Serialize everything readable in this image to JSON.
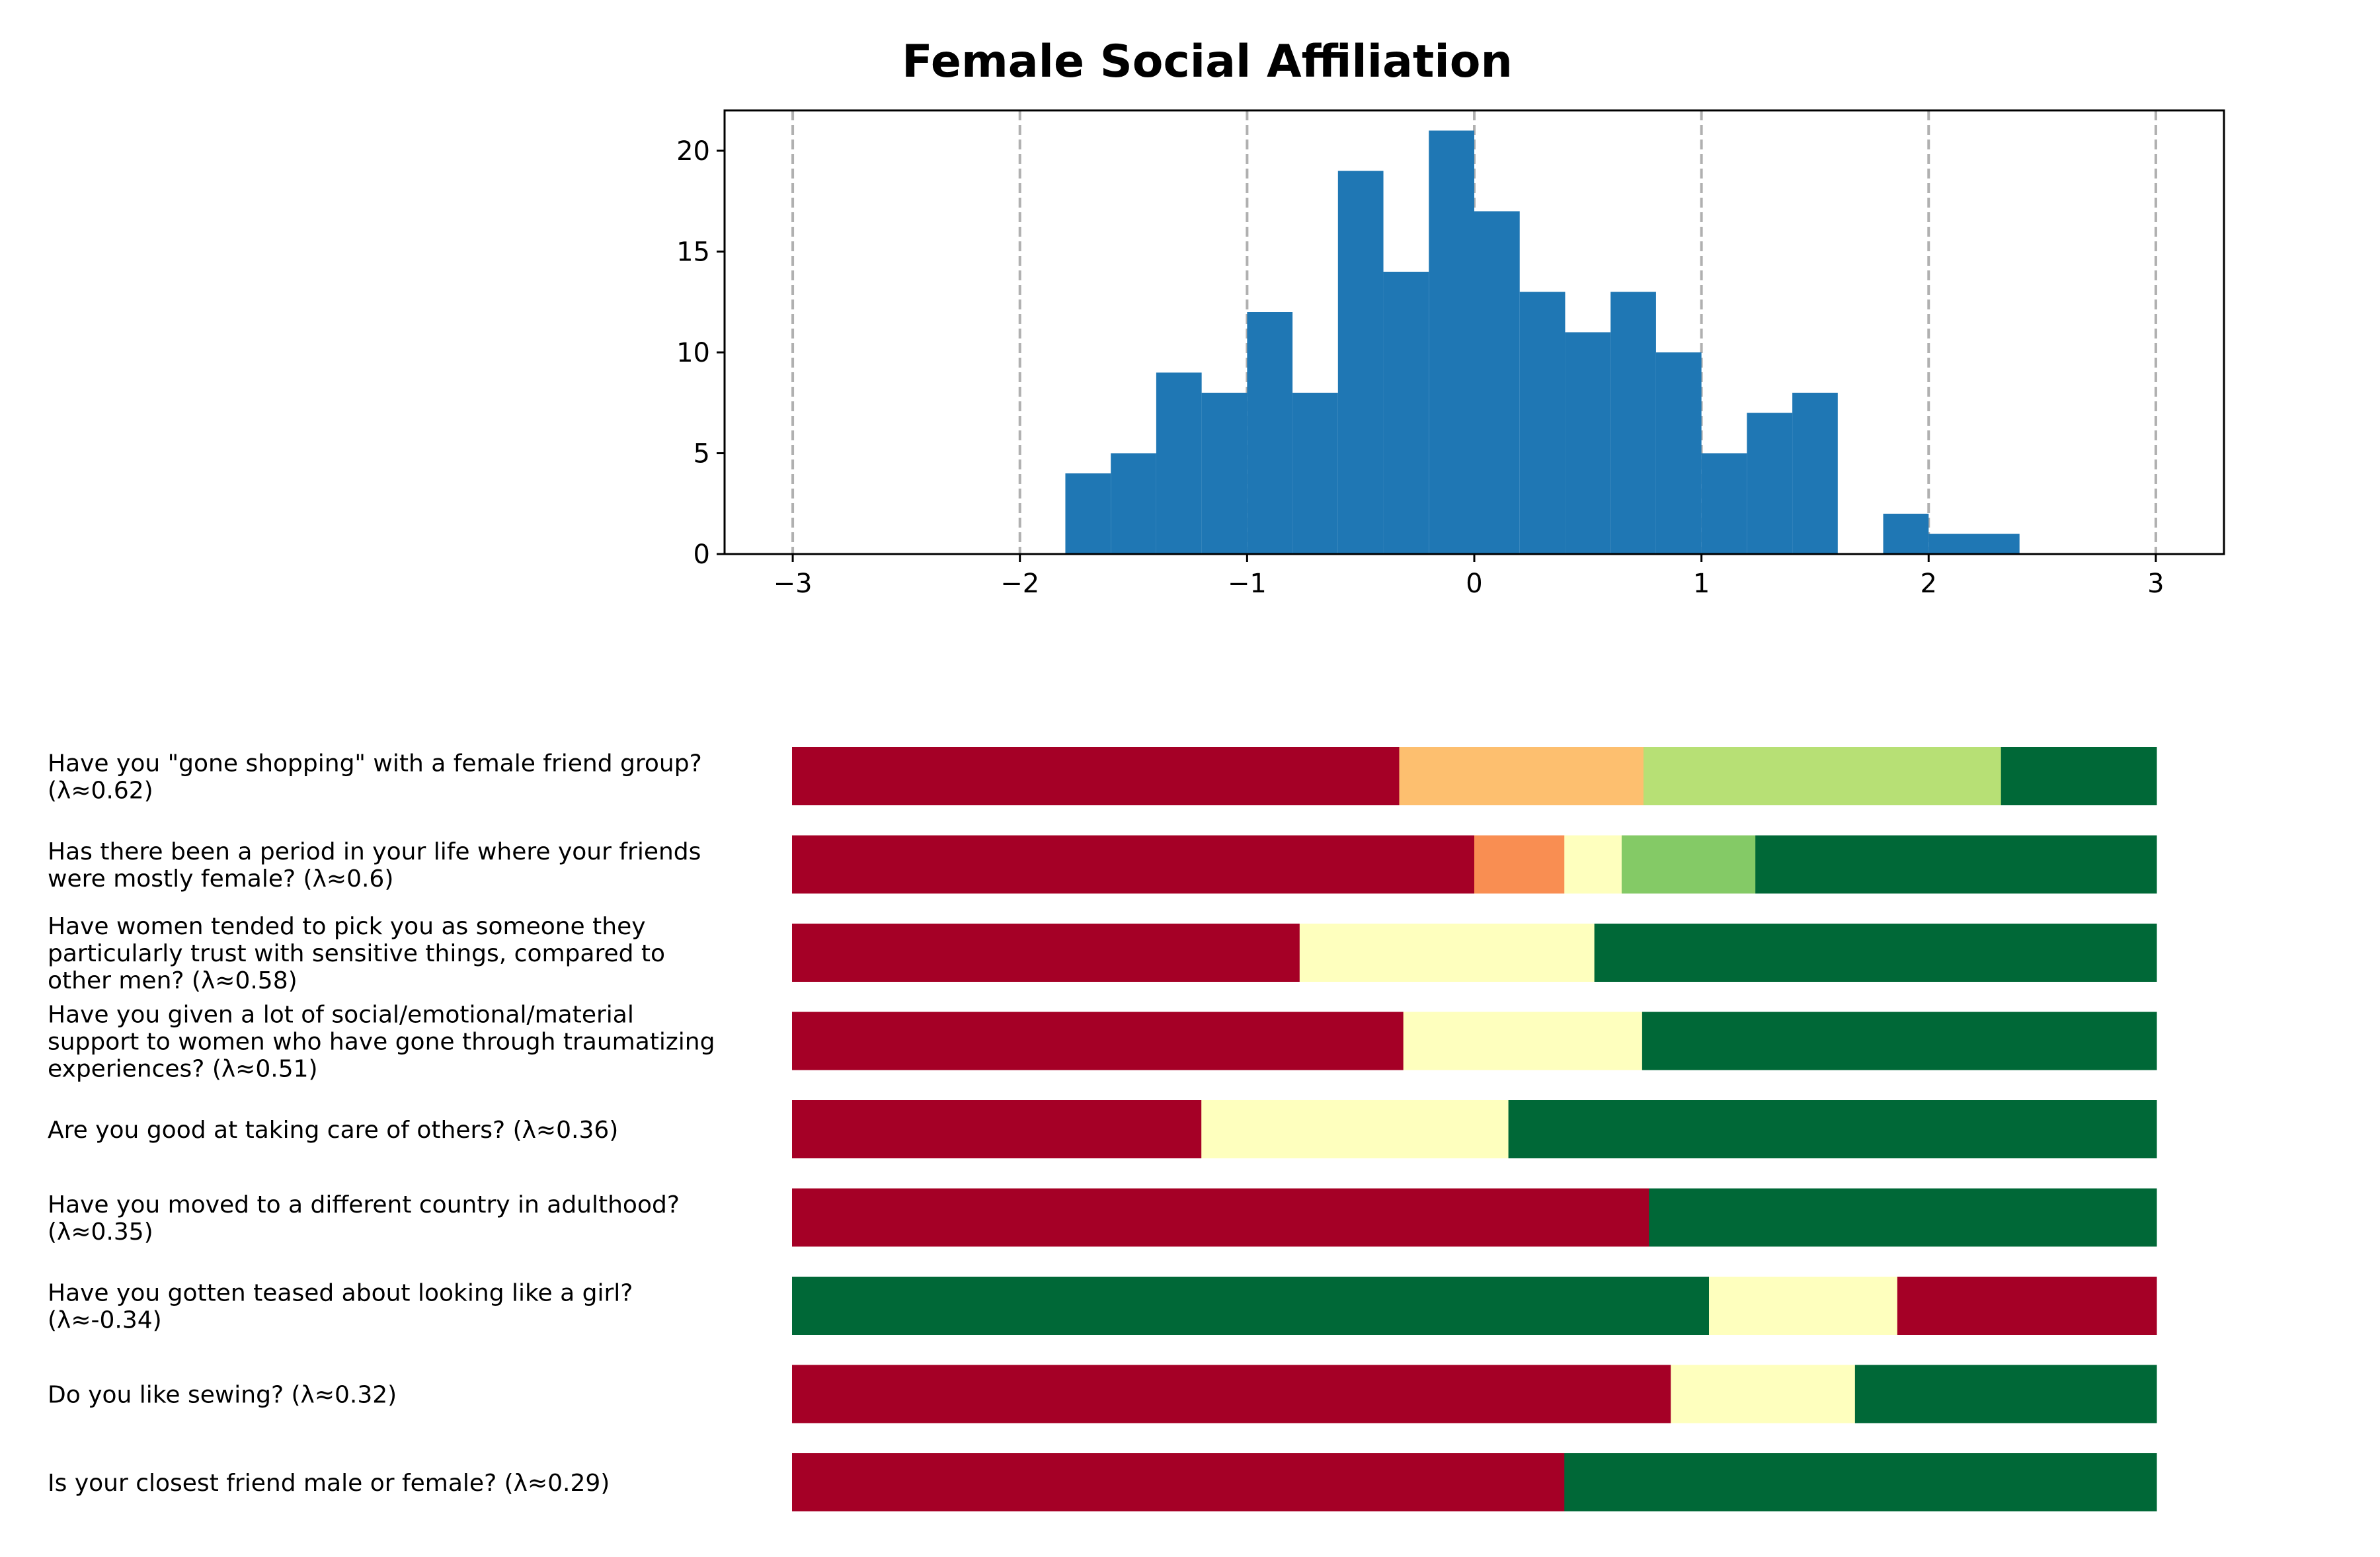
{
  "chart_data": [
    {
      "type": "bar",
      "title": "Female Social Affiliation",
      "xlabel": "",
      "ylabel": "",
      "xlim": [
        -3.3,
        3.3
      ],
      "ylim": [
        0,
        22
      ],
      "xticks": [
        -3,
        -2,
        -1,
        0,
        1,
        2,
        3
      ],
      "xtick_labels": [
        "−3",
        "−2",
        "−1",
        "0",
        "1",
        "2",
        "3"
      ],
      "yticks": [
        0,
        5,
        10,
        15,
        20
      ],
      "ytick_labels": [
        "0",
        "5",
        "10",
        "15",
        "20"
      ],
      "bin_width": 0.2,
      "bins": [
        {
          "x0": -1.8,
          "count": 4
        },
        {
          "x0": -1.6,
          "count": 5
        },
        {
          "x0": -1.4,
          "count": 9
        },
        {
          "x0": -1.2,
          "count": 8
        },
        {
          "x0": -1.0,
          "count": 12
        },
        {
          "x0": -0.8,
          "count": 8
        },
        {
          "x0": -0.6,
          "count": 19
        },
        {
          "x0": -0.4,
          "count": 14
        },
        {
          "x0": -0.2,
          "count": 21
        },
        {
          "x0": 0.0,
          "count": 17
        },
        {
          "x0": 0.2,
          "count": 13
        },
        {
          "x0": 0.4,
          "count": 11
        },
        {
          "x0": 0.6,
          "count": 13
        },
        {
          "x0": 0.8,
          "count": 10
        },
        {
          "x0": 1.0,
          "count": 5
        },
        {
          "x0": 1.2,
          "count": 7
        },
        {
          "x0": 1.4,
          "count": 8
        },
        {
          "x0": 1.6,
          "count": 0
        },
        {
          "x0": 1.8,
          "count": 2
        },
        {
          "x0": 2.0,
          "count": 1
        },
        {
          "x0": 2.2,
          "count": 1
        }
      ],
      "grid_x_lines": [
        -3,
        -2,
        -1,
        0,
        1,
        2,
        3
      ],
      "bar_color": "#1f77b4",
      "grid_color": "#b0b0b0"
    },
    {
      "type": "bar",
      "orientation": "horizontal-stacked",
      "xlim": [
        0,
        1
      ],
      "title": "",
      "rows": [
        {
          "label_lines": [
            "Have you \"gone shopping\" with a female friend group?",
            "(λ≈0.62)"
          ],
          "segments": [
            {
              "value": 0.445,
              "color": "#a50026"
            },
            {
              "value": 0.179,
              "color": "#fdbf6f"
            },
            {
              "value": 0.262,
              "color": "#b7e075"
            },
            {
              "value": 0.114,
              "color": "#006837"
            }
          ]
        },
        {
          "label_lines": [
            "Has there been a period in your life where your friends",
            "were mostly female? (λ≈0.6)"
          ],
          "segments": [
            {
              "value": 0.5,
              "color": "#a50026"
            },
            {
              "value": 0.066,
              "color": "#f98e52"
            },
            {
              "value": 0.042,
              "color": "#feffbe"
            },
            {
              "value": 0.098,
              "color": "#84ca66"
            },
            {
              "value": 0.294,
              "color": "#006837"
            }
          ]
        },
        {
          "label_lines": [
            "Have women tended to pick you as someone they",
            "particularly trust with sensitive things, compared to",
            "other men? (λ≈0.58)"
          ],
          "segments": [
            {
              "value": 0.372,
              "color": "#a50026"
            },
            {
              "value": 0.216,
              "color": "#feffbe"
            },
            {
              "value": 0.412,
              "color": "#006837"
            }
          ]
        },
        {
          "label_lines": [
            "Have you given a lot of social/emotional/material",
            "support to women who have gone through traumatizing",
            "experiences? (λ≈0.51)"
          ],
          "segments": [
            {
              "value": 0.448,
              "color": "#a50026"
            },
            {
              "value": 0.175,
              "color": "#feffbe"
            },
            {
              "value": 0.377,
              "color": "#006837"
            }
          ]
        },
        {
          "label_lines": [
            "Are you good at taking care of others? (λ≈0.36)"
          ],
          "segments": [
            {
              "value": 0.3,
              "color": "#a50026"
            },
            {
              "value": 0.225,
              "color": "#feffbe"
            },
            {
              "value": 0.475,
              "color": "#006837"
            }
          ]
        },
        {
          "label_lines": [
            "Have you moved to a different country in adulthood?",
            "(λ≈0.35)"
          ],
          "segments": [
            {
              "value": 0.628,
              "color": "#a50026"
            },
            {
              "value": 0.372,
              "color": "#006837"
            }
          ]
        },
        {
          "label_lines": [
            "Have you gotten teased about looking like a girl?",
            "(λ≈-0.34)"
          ],
          "segments": [
            {
              "value": 0.672,
              "color": "#006837"
            },
            {
              "value": 0.138,
              "color": "#feffbe"
            },
            {
              "value": 0.19,
              "color": "#a50026"
            }
          ]
        },
        {
          "label_lines": [
            "Do you like sewing? (λ≈0.32)"
          ],
          "segments": [
            {
              "value": 0.644,
              "color": "#a50026"
            },
            {
              "value": 0.135,
              "color": "#feffbe"
            },
            {
              "value": 0.221,
              "color": "#006837"
            }
          ]
        },
        {
          "label_lines": [
            "Is your closest friend male or female? (λ≈0.29)"
          ],
          "segments": [
            {
              "value": 0.566,
              "color": "#a50026"
            },
            {
              "value": 0.434,
              "color": "#006837"
            }
          ]
        }
      ]
    }
  ]
}
